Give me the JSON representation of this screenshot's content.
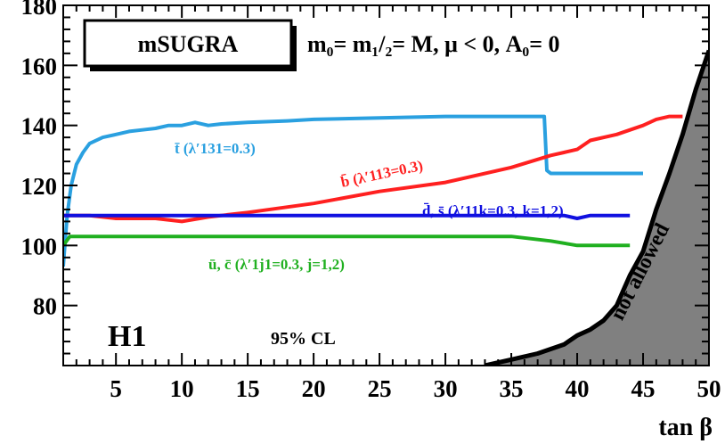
{
  "chart_data": {
    "type": "line",
    "ylim": [
      60,
      180
    ],
    "xlim": [
      1,
      50
    ],
    "xticks": [
      5,
      10,
      15,
      20,
      25,
      30,
      35,
      40,
      45,
      50
    ],
    "yticks": [
      80,
      100,
      120,
      140,
      160,
      180
    ],
    "xlabel": "tan β",
    "ylabel": "",
    "title": "",
    "model_box": "mSUGRA",
    "conditions": "m₀= m₁/₂= M,  μ < 0,  A₀= 0",
    "experiment": "H1",
    "confidence": "95% CL",
    "region_label": "not allowed",
    "region_color": "#808080",
    "series": [
      {
        "name": "t̄ (λ′131=0.3)",
        "color": "#2aa0e0",
        "x": [
          1,
          1.3,
          1.6,
          2,
          2.5,
          3,
          4,
          5,
          6,
          7,
          8,
          9,
          10,
          11,
          12,
          13,
          15,
          18,
          20,
          25,
          30,
          35,
          37.5,
          37.7,
          38,
          40,
          45
        ],
        "y": [
          93,
          110,
          120,
          127,
          131,
          134,
          136,
          137,
          138,
          138.5,
          139,
          140,
          140,
          141,
          140,
          140.5,
          141,
          141.5,
          142,
          142.5,
          143,
          143,
          143,
          125,
          124,
          124,
          124
        ]
      },
      {
        "name": "b̄ (λ′113=0.3)",
        "color": "#ff2020",
        "x": [
          1,
          3,
          5,
          8,
          10,
          12,
          15,
          20,
          25,
          30,
          35,
          38,
          39,
          40,
          41,
          43,
          45,
          46,
          47,
          48
        ],
        "y": [
          110,
          110,
          109,
          109,
          108,
          109.5,
          111,
          114,
          118,
          121,
          126,
          130,
          131,
          132,
          135,
          137,
          140,
          142,
          143,
          143
        ]
      },
      {
        "name": "d̄, s̄ (λ′11k=0.3, k=1,2)",
        "color": "#1010e0",
        "x": [
          1,
          10,
          20,
          30,
          38,
          39,
          40,
          41,
          42,
          44
        ],
        "y": [
          110,
          110,
          110,
          110,
          110,
          110,
          109,
          110,
          110,
          110
        ]
      },
      {
        "name": "ū, c̄ (λ′1j1=0.3, j=1,2)",
        "color": "#20b020",
        "x": [
          1,
          1.5,
          2,
          5,
          10,
          20,
          30,
          35,
          38,
          40,
          42,
          44
        ],
        "y": [
          100,
          103,
          103,
          103,
          103,
          103,
          103,
          103,
          101.5,
          100,
          100,
          100
        ]
      }
    ],
    "boundary": {
      "x": [
        33,
        35,
        37,
        39,
        40,
        41,
        42,
        43,
        43.5,
        44,
        45,
        46,
        47,
        48,
        49,
        50,
        50
      ],
      "y": [
        60,
        62,
        64,
        67,
        70,
        72,
        75,
        80,
        85,
        90,
        98,
        112,
        124,
        137,
        152,
        165,
        60
      ]
    }
  }
}
